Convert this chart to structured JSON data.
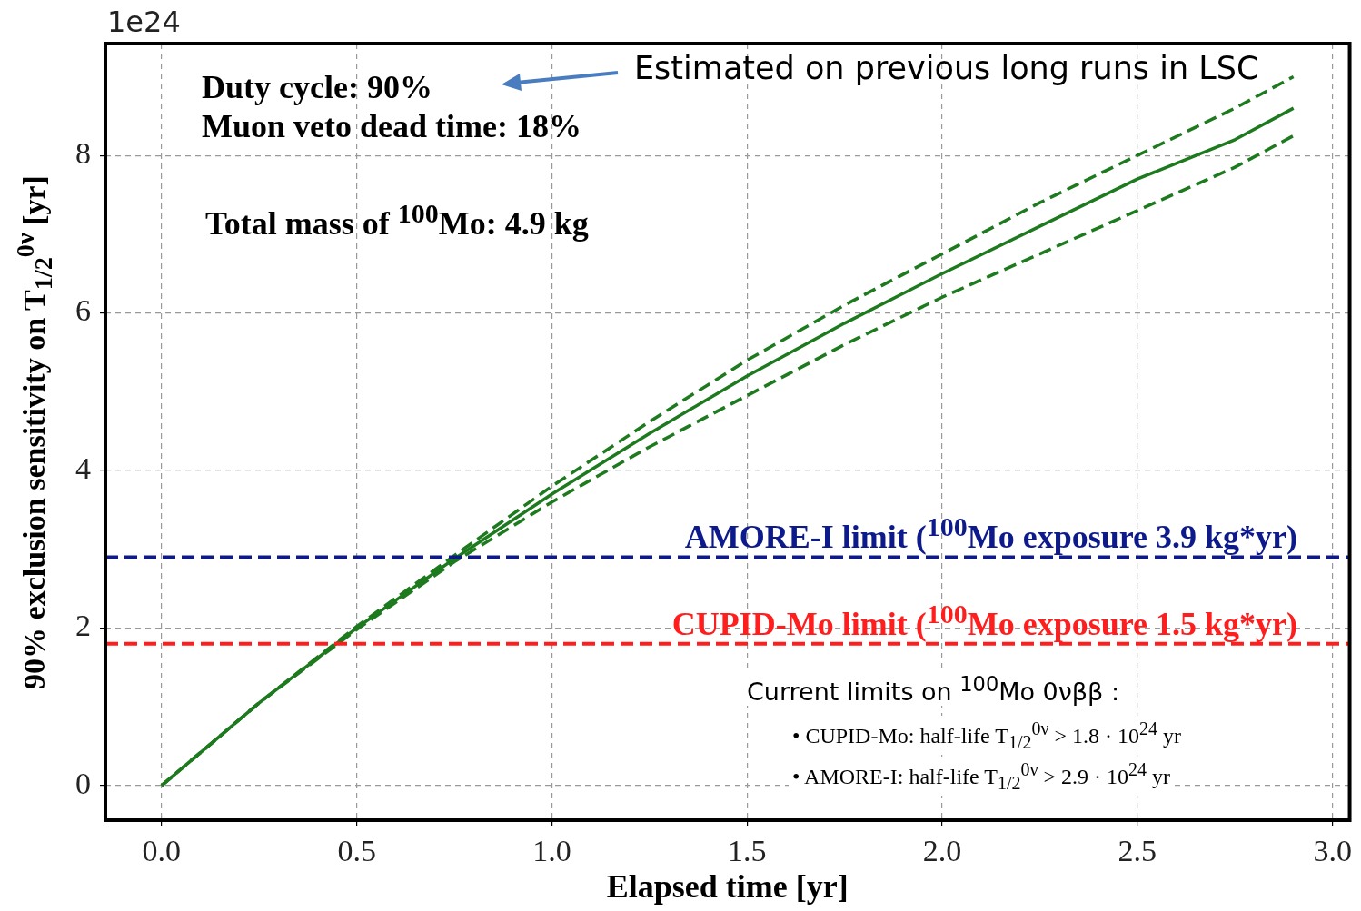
{
  "chart_data": {
    "type": "line",
    "xlabel": "Elapsed time [yr]",
    "ylabel": "90% exclusion sensitivity on T$_{1/2}$$^{0ν}$ [yr]",
    "xlim": [
      -0.144,
      3.044
    ],
    "xticks": [
      {
        "value": 0,
        "label": "0.0"
      },
      {
        "value": 0.5,
        "label": "0.5"
      },
      {
        "value": 1,
        "label": "1.0"
      },
      {
        "value": 1.5,
        "label": "1.5"
      },
      {
        "value": 2,
        "label": "2.0"
      },
      {
        "value": 2.5,
        "label": "2.5"
      },
      {
        "value": 3,
        "label": "3.0"
      }
    ],
    "ylim": [
      -0.44,
      9.42
    ],
    "yticks": [
      0,
      2,
      4,
      6,
      8
    ],
    "grid": true,
    "legend": false,
    "marker": "none",
    "x": [
      0,
      0.25,
      0.5,
      0.75,
      1.0,
      1.25,
      1.5,
      1.75,
      2.0,
      2.25,
      2.5,
      2.75,
      2.9
    ],
    "series": [
      {
        "color": "#1e7a1e",
        "line_style": "solid",
        "values": [
          0,
          1.05,
          2.0,
          2.88,
          3.7,
          4.47,
          5.2,
          5.87,
          6.5,
          7.1,
          7.7,
          8.2,
          8.6
        ]
      },
      {
        "color": "#1e7a1e",
        "line_style": "dashed",
        "values": [
          0,
          1.05,
          2.02,
          2.92,
          3.8,
          4.62,
          5.4,
          6.1,
          6.75,
          7.4,
          8.0,
          8.6,
          9.0
        ]
      },
      {
        "color": "#1e7a1e",
        "line_style": "dashed",
        "values": [
          0,
          1.05,
          1.98,
          2.84,
          3.6,
          4.3,
          4.95,
          5.6,
          6.2,
          6.75,
          7.3,
          7.85,
          8.25
        ]
      }
    ],
    "ref_lines": [
      {
        "axis": "y",
        "value": 2.9,
        "label": "AMORE-I limit ($^{100}$Mo exposure 3.9 kg*yr)",
        "color": "#0d1a8c",
        "line_style": "dashed"
      },
      {
        "axis": "y",
        "value": 1.8,
        "label": "CUPID-Mo limit ($^{100}$Mo exposure 1.5 kg*yr)",
        "color": "#ff1e1e",
        "line_style": "dashed"
      }
    ],
    "annotations": [
      "1e24",
      "Duty cycle: 90%",
      "Muon veto dead time: 18%",
      "Total mass of $^{100}$Mo: 4.9 kg",
      "Estimated on previous long runs in LSC",
      "Current limits on $^{100}$Mo 0νββ :",
      "•     CUPID-Mo: half-life T$_{1/2}$$^{0ν}$ > 1.8 · 10$^{24}$ yr",
      "•     AMORE-I: half-life T$_{1/2}$$^{0ν}$ > 2.9 · 10$^{24}$ yr"
    ]
  }
}
